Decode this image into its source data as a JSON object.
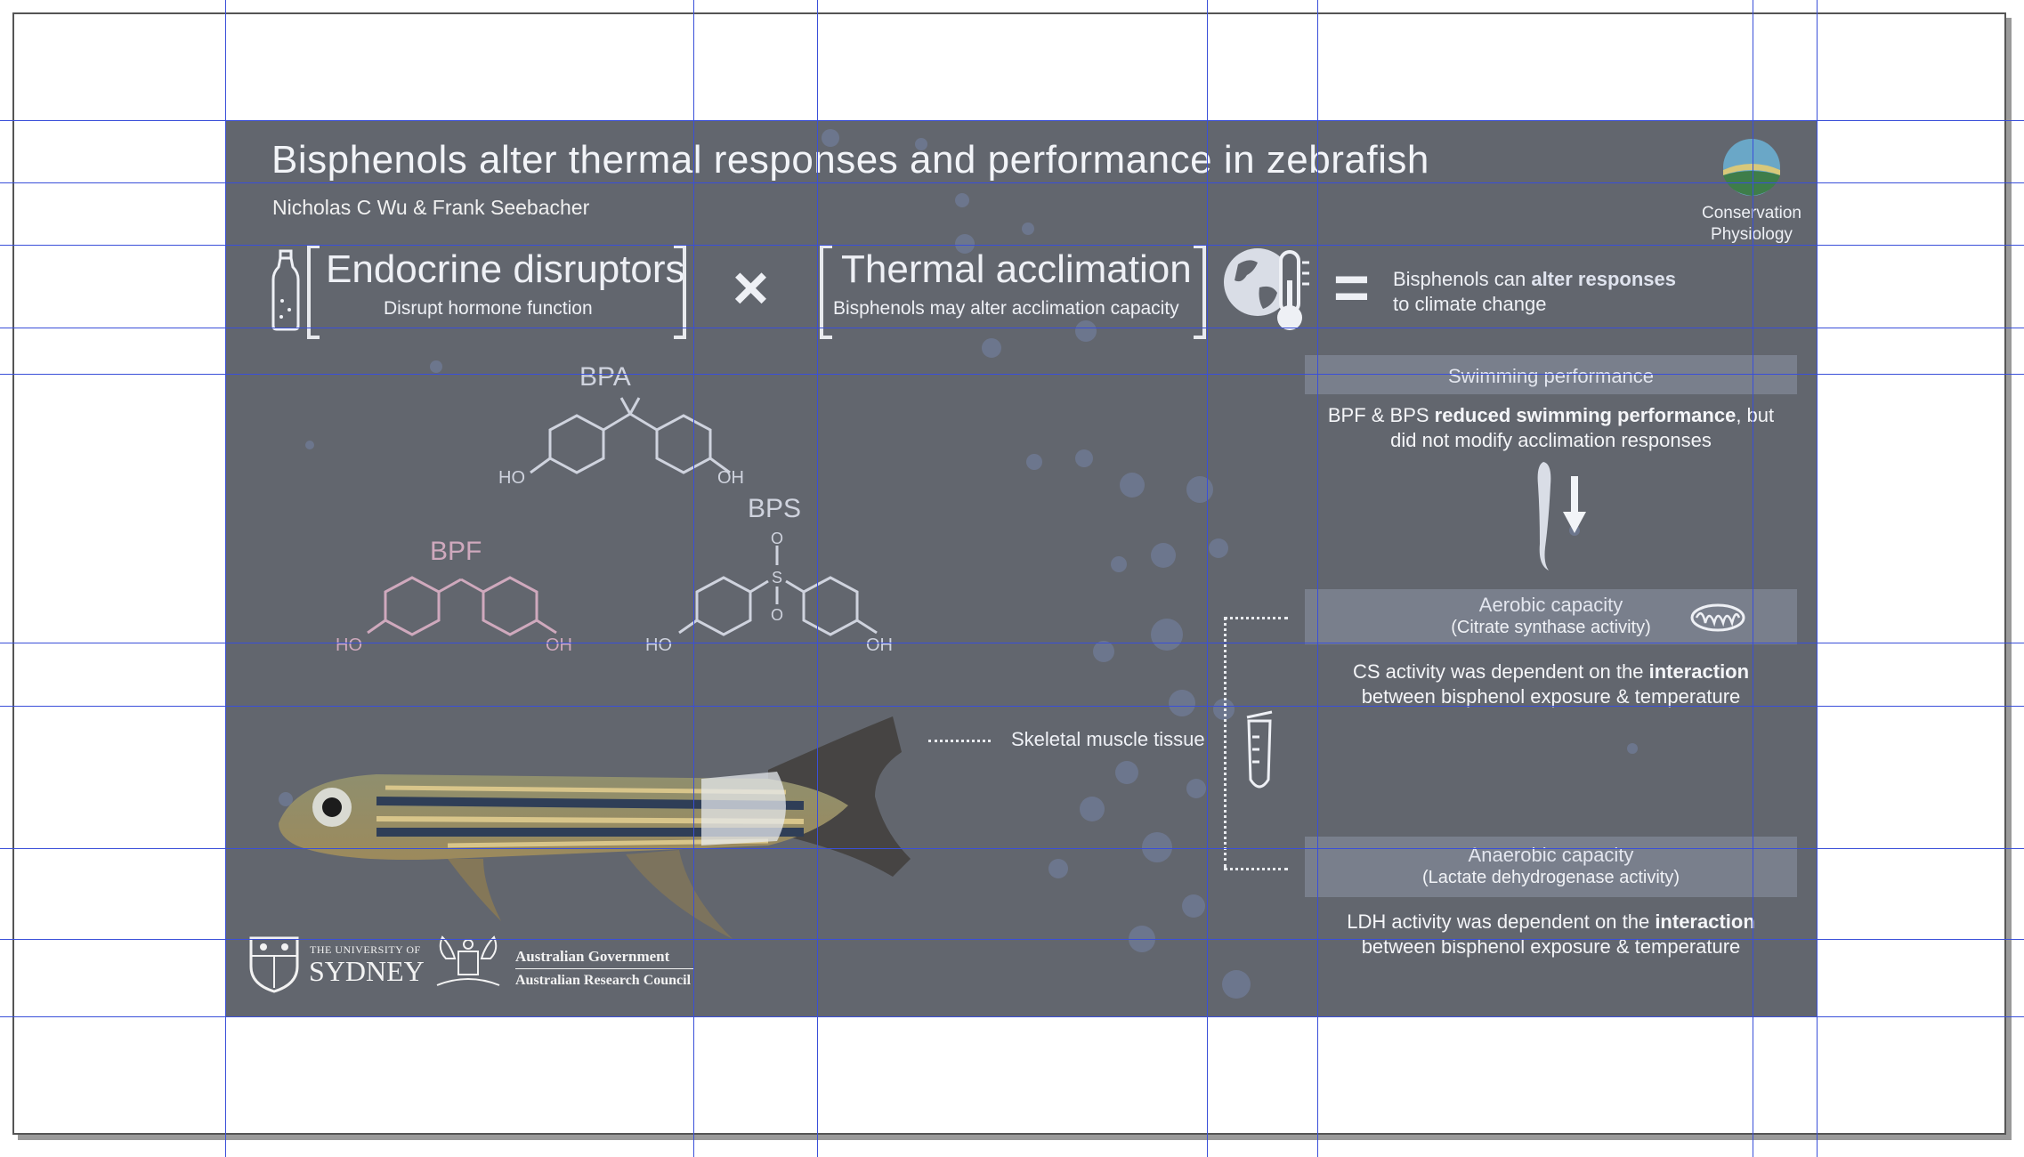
{
  "slide": {
    "title": "Bisphenols alter thermal responses and performance in zebrafish",
    "authors": "Nicholas C Wu & Frank Seebacher",
    "journal_logo": {
      "line1": "Conservation",
      "line2": "Physiology"
    },
    "concept1": {
      "title": "Endocrine disruptors",
      "subtitle": "Disrupt hormone function",
      "icon": "bottle-icon"
    },
    "operator_times": "×",
    "concept2": {
      "title": "Thermal acclimation",
      "subtitle": "Bisphenols may alter acclimation capacity",
      "icon": "globe-thermometer-icon"
    },
    "operator_equals": "=",
    "conclusion": {
      "prefix": "Bisphenols can ",
      "highlight": "alter responses",
      "line2": "to climate change"
    },
    "molecules": {
      "bpa": "BPA",
      "bpf": "BPF",
      "bps": "BPS",
      "ho": "HO",
      "oh": "OH",
      "o": "O",
      "s": "S"
    },
    "fish_label": "Skeletal muscle tissue",
    "swimming": {
      "header": "Swimming performance",
      "body_pre": "BPF & BPS ",
      "body_bold": "reduced swimming performance",
      "body_post": ", but",
      "body_line2": "did not modify acclimation responses"
    },
    "aerobic": {
      "header": "Aerobic capacity",
      "subheader": "(Citrate synthase activity)",
      "body_pre": "CS activity was dependent on the ",
      "body_bold": "interaction",
      "body_line2": "between bisphenol exposure & temperature"
    },
    "anaerobic": {
      "header": "Anaerobic capacity",
      "subheader": "(Lactate dehydrogenase activity)",
      "body_pre": "LDH activity was dependent on the ",
      "body_bold": "interaction",
      "body_line2": "between bisphenol exposure & temperature"
    },
    "logos": {
      "usyd_small": "THE UNIVERSITY OF",
      "usyd_big": "SYDNEY",
      "gov": "Australian Government",
      "arc": "Australian Research Council"
    }
  },
  "colors": {
    "slide_bg": "#62666e",
    "guide": "#3a4fd9",
    "accent_pink": "#cfa9bd"
  }
}
